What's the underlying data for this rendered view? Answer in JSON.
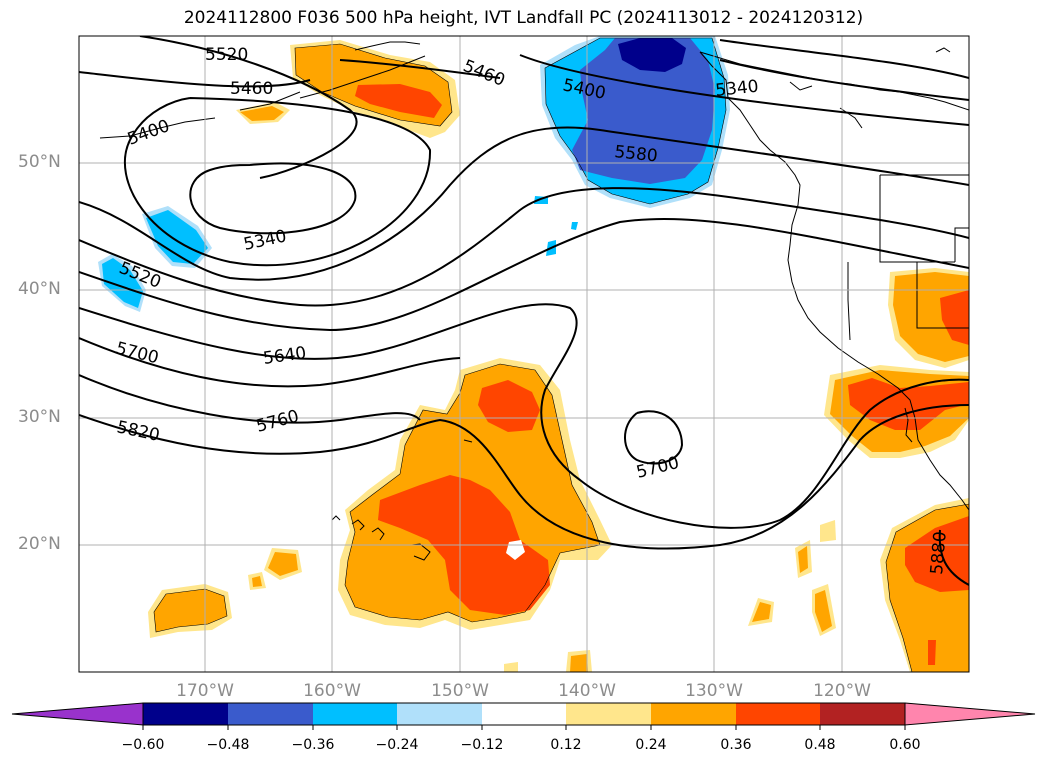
{
  "title": "2024112800 F036 500 hPa height, IVT Landfall PC (2024113012 - 2024120312)",
  "map": {
    "lat_labels": [
      "50°N",
      "40°N",
      "30°N",
      "20°N"
    ],
    "lon_labels": [
      "170°W",
      "160°W",
      "150°W",
      "140°W",
      "130°W",
      "120°W"
    ],
    "contour_labels": [
      "5520",
      "5460",
      "5400",
      "5340",
      "5520",
      "5700",
      "5640",
      "5760",
      "5820",
      "5460",
      "5400",
      "5340",
      "5580",
      "5700",
      "5880"
    ],
    "gridline_color": "#b0b0b0"
  },
  "colorbar": {
    "tick_labels": [
      "−0.60",
      "−0.48",
      "−0.36",
      "−0.24",
      "−0.12",
      "0.12",
      "0.24",
      "0.36",
      "0.48",
      "0.60"
    ],
    "colors": [
      "#9932cc",
      "#00008b",
      "#3a5bcc",
      "#00bfff",
      "#b0e0fa",
      "#ffffff",
      "#ffe68c",
      "#ffa500",
      "#ff4500",
      "#b22222",
      "#ff85ad"
    ]
  }
}
